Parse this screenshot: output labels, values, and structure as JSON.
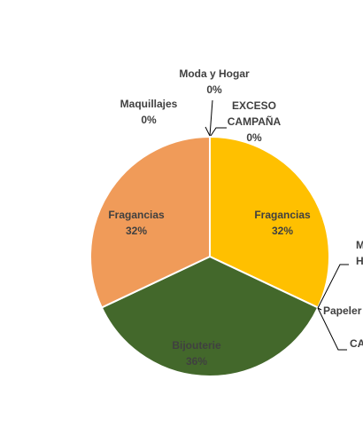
{
  "chart_data": {
    "type": "pie",
    "categories": [
      "Fragancias",
      "EXCESO CAMPAÑA",
      "Papelería",
      "Moda y Hogar",
      "Bijouterie",
      "Fragancias",
      "Maquillajes",
      "Moda y Hogar",
      "EXCESO CAMPAÑA"
    ],
    "values": [
      32,
      0,
      0,
      0,
      36,
      32,
      0,
      0,
      0
    ],
    "slices": [
      {
        "label": "Fragancias",
        "value": 32,
        "value_label": "32%",
        "color": "#ffc000"
      },
      {
        "label": "CA",
        "value": 0,
        "value_label": "",
        "color": "#ffc000"
      },
      {
        "label": "Papeler",
        "value": 0,
        "value_label": "",
        "color": "#ffc000"
      },
      {
        "label_lines": [
          "M",
          "Ho"
        ],
        "value": 0,
        "value_label": "",
        "color": "#ffc000"
      },
      {
        "label": "Bijouterie",
        "value": 36,
        "value_label": "36%",
        "color": "#43682b"
      },
      {
        "label": "Fragancias",
        "value": 32,
        "value_label": "32%",
        "color": "#f09b59"
      },
      {
        "label": "Maquillajes",
        "value": 0,
        "value_label": "0%",
        "color": "#f09b59"
      },
      {
        "label": "Moda y Hogar",
        "value": 0,
        "value_label": "0%",
        "color": "#f09b59"
      },
      {
        "label_lines": [
          "EXCESO",
          "CAMPAÑA"
        ],
        "value": 0,
        "value_label": "0%",
        "color": "#f09b59"
      }
    ],
    "colors": {
      "label_text": "#404040",
      "leader_line": "#000000",
      "slice_border": "#ffffff"
    }
  }
}
